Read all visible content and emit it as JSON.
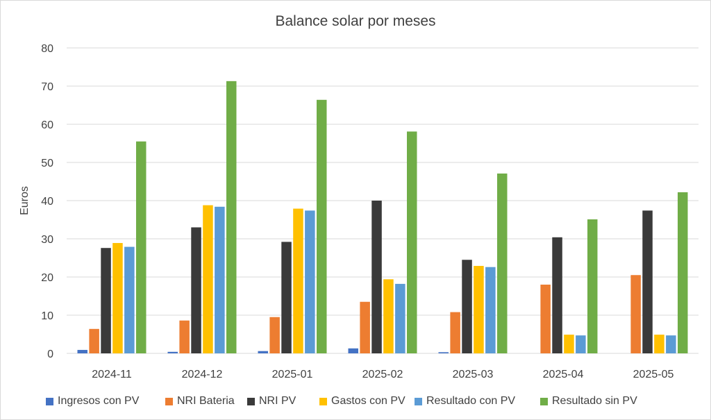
{
  "chart_data": {
    "type": "bar",
    "title": "Balance solar por meses",
    "xlabel": "",
    "ylabel": "Euros",
    "ylim": [
      0,
      80
    ],
    "yticks": [
      0,
      10,
      20,
      30,
      40,
      50,
      60,
      70,
      80
    ],
    "grid": true,
    "legend_position": "bottom",
    "categories": [
      "2024-11",
      "2024-12",
      "2025-01",
      "2025-02",
      "2025-03",
      "2025-04",
      "2025-05"
    ],
    "series": [
      {
        "name": "Ingresos con PV",
        "color": "#4472C4",
        "values": [
          0.9,
          0.4,
          0.6,
          1.3,
          0.3,
          0,
          0
        ]
      },
      {
        "name": "NRI Bateria",
        "color": "#ED7D31",
        "values": [
          6.4,
          8.6,
          9.5,
          13.5,
          10.8,
          18.0,
          20.5
        ]
      },
      {
        "name": "NRI PV",
        "color": "#3A3A3A",
        "values": [
          27.6,
          33.0,
          29.2,
          40.0,
          24.5,
          30.4,
          37.4
        ]
      },
      {
        "name": "Gastos con PV",
        "color": "#FFC000",
        "values": [
          28.9,
          38.8,
          37.9,
          19.4,
          22.9,
          4.9,
          4.9
        ]
      },
      {
        "name": "Resultado con PV",
        "color": "#5B9BD5",
        "values": [
          27.9,
          38.4,
          37.4,
          18.2,
          22.6,
          4.7,
          4.7
        ]
      },
      {
        "name": "Resultado sin PV",
        "color": "#70AD47",
        "values": [
          55.5,
          71.3,
          66.4,
          58.1,
          47.1,
          35.1,
          42.2
        ]
      }
    ]
  }
}
